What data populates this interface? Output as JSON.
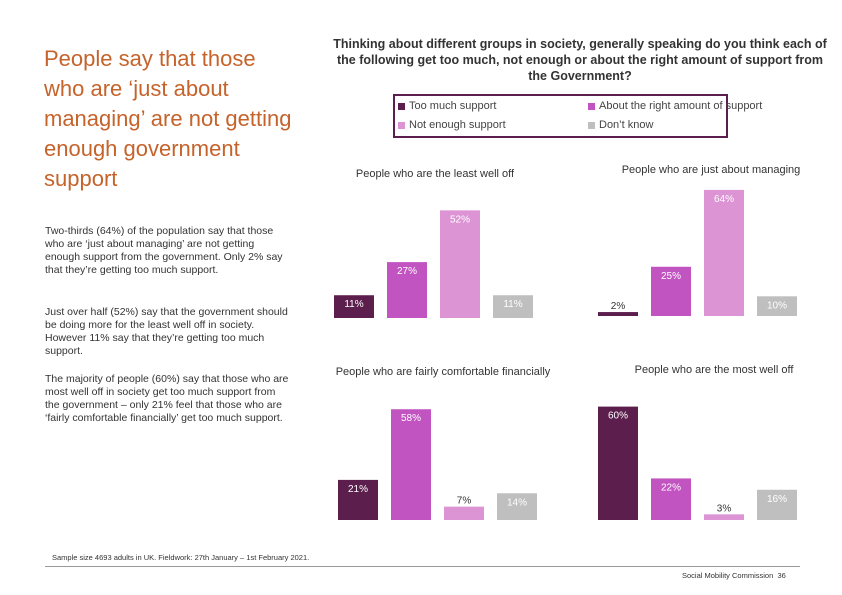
{
  "heading": "People say that those who are ‘just about managing’ are not getting enough government support",
  "paragraphs": [
    "Two-thirds (64%) of the population say that those who are ‘just about managing’ are not getting enough support from the government. Only 2% say that they’re getting too much support.",
    "Just over half (52%) say that the government should be doing more for the least well off in society. However 11% say that they’re getting too much support.",
    "The majority of people (60%) say that those who are most well off in society get too much support from the government – only 21% feel that those who are ‘fairly comfortable financially’ get too much support."
  ],
  "question": "Thinking about different groups in society, generally speaking do you think each of the following get too much, not enough or about the right amount of support from the Government?",
  "footer": {
    "sample_note": "Sample size 4693 adults in UK. Fieldwork: 27th January – 1st February 2021.",
    "org": "Social Mobility Commission",
    "page": "36"
  },
  "colors": {
    "heading": "#c5632b",
    "too_much": "#5c1f4d",
    "about_right": "#c154c1",
    "not_enough": "#dd94d4",
    "dont_know": "#bfbfbf",
    "legend_highlight": "#5c1f4d"
  },
  "chart_data": [
    {
      "type": "bar",
      "title": "People who are the least well off",
      "categories": [
        "Too much support",
        "About the right amount of support",
        "Not enough support",
        "Don’t know"
      ],
      "values": [
        11,
        27,
        52,
        11
      ],
      "value_labels": [
        "11%",
        "27%",
        "52%",
        "11%"
      ]
    },
    {
      "type": "bar",
      "title": "People who are just about managing",
      "categories": [
        "Too much support",
        "About the right amount of support",
        "Not enough support",
        "Don’t know"
      ],
      "values": [
        2,
        25,
        64,
        10
      ],
      "value_labels": [
        "2%",
        "25%",
        "64%",
        "10%"
      ]
    },
    {
      "type": "bar",
      "title": "People who are fairly comfortable financially",
      "categories": [
        "Too much support",
        "About the right amount of support",
        "Not enough support",
        "Don’t know"
      ],
      "values": [
        21,
        58,
        7,
        14
      ],
      "value_labels": [
        "21%",
        "58%",
        "7%",
        "14%"
      ]
    },
    {
      "type": "bar",
      "title": "People who are the most well off",
      "categories": [
        "Too much support",
        "About the right amount of support",
        "Not enough support",
        "Don’t know"
      ],
      "values": [
        60,
        22,
        3,
        16
      ],
      "value_labels": [
        "60%",
        "22%",
        "3%",
        "16%"
      ]
    }
  ],
  "legend": [
    {
      "label": "Too much support",
      "color_key": "too_much"
    },
    {
      "label": "About the right amount of support",
      "color_key": "about_right"
    },
    {
      "label": "Not enough support",
      "color_key": "not_enough"
    },
    {
      "label": "Don’t know",
      "color_key": "dont_know"
    }
  ]
}
